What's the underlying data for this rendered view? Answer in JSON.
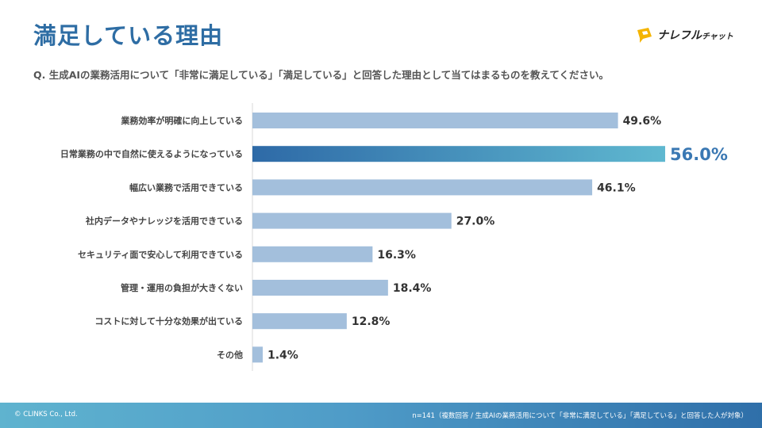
{
  "header": {
    "title": "満足している理由",
    "question": "Q. 生成AIの業務活用について「非常に満足している」「満足している」と回答した理由として当てはまるものを教えてください。",
    "logo_text_main": "ナレフル",
    "logo_text_sub": "チャット"
  },
  "footer": {
    "copyright": "© CLINKS Co., Ltd.",
    "note": "n=141（複数回答 / 生成AIの業務活用について「非常に満足している」「満足している」と回答した人が対象）"
  },
  "colors": {
    "bar": "#a3bfdc",
    "highlight_start": "#2e6aa7",
    "highlight_end": "#5fb8d0",
    "highlight_label": "#3a78b3",
    "title": "#2e6da4",
    "logo_yellow": "#f4b400"
  },
  "chart_data": {
    "type": "bar",
    "orientation": "horizontal",
    "categories": [
      "業務効率が明確に向上している",
      "日常業務の中で自然に使えるようになっている",
      "幅広い業務で活用できている",
      "社内データやナレッジを活用できている",
      "セキュリティ面で安心して利用できている",
      "管理・運用の負担が大きくない",
      "コストに対して十分な効果が出ている",
      "その他"
    ],
    "values": [
      49.6,
      56.0,
      46.1,
      27.0,
      16.3,
      18.4,
      12.8,
      1.4
    ],
    "value_labels": [
      "49.6%",
      "56.0%",
      "46.1%",
      "27.0%",
      "16.3%",
      "18.4%",
      "12.8%",
      "1.4%"
    ],
    "highlight_index": 1,
    "unit": "%",
    "xlim": [
      0,
      56.0
    ],
    "grid": false
  }
}
